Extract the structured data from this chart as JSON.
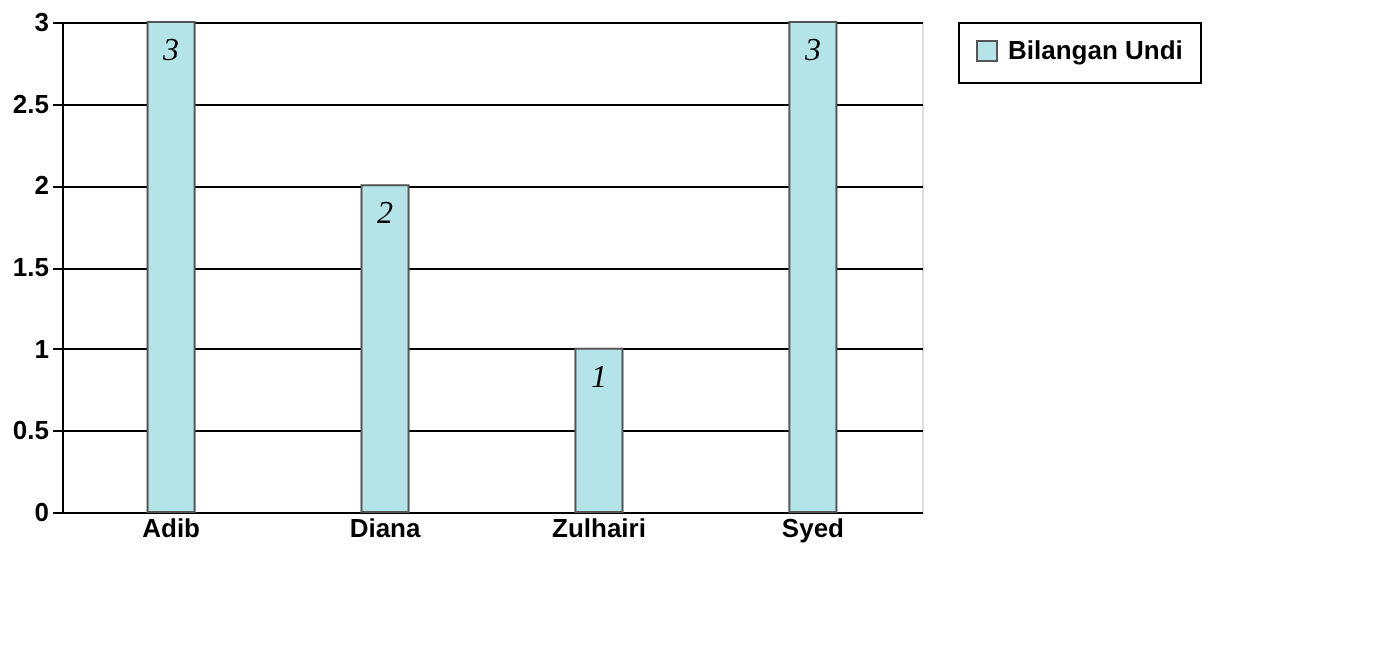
{
  "chart_data": {
    "type": "bar",
    "categories": [
      "Adib",
      "Diana",
      "Zulhairi",
      "Syed"
    ],
    "series": [
      {
        "name": "Bilangan Undi",
        "color": "#b4e4e8",
        "values": [
          3,
          2,
          1,
          3
        ]
      }
    ],
    "ylim": [
      0,
      3
    ],
    "yticks": [
      0,
      0.5,
      1,
      1.5,
      2,
      2.5,
      3
    ],
    "grid": "y",
    "legend": "right",
    "data_labels": true
  }
}
